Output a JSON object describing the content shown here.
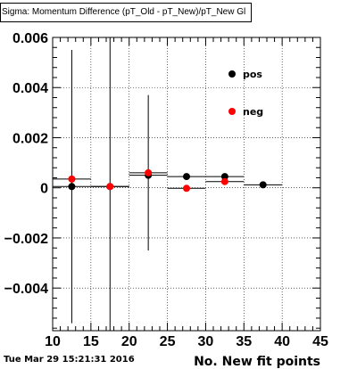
{
  "title": "Sigma: Momentum Difference (pT_Old - pT_New)/pT_New Gl",
  "footer_date": "Tue Mar 29 15:21:31 2016",
  "chart_data": {
    "type": "scatter",
    "title": "Sigma: Momentum Difference (pT_Old - pT_New)/pT_New Gl",
    "xlabel": "No. New fit points",
    "ylabel": "",
    "xlim": [
      10,
      45
    ],
    "ylim": [
      -0.0057,
      0.006
    ],
    "x_ticks": [
      10,
      15,
      20,
      25,
      30,
      35,
      40,
      45
    ],
    "x_tick_labels": [
      "10",
      "15",
      "20",
      "25",
      "30",
      "35",
      "40",
      "45"
    ],
    "y_ticks": [
      -0.004,
      -0.002,
      0,
      0.002,
      0.004,
      0.006
    ],
    "y_tick_labels": [
      "−0.004",
      "−0.002",
      "0",
      "0.002",
      "0.004",
      "0.006"
    ],
    "grid": true,
    "legend_position": "top-right",
    "series": [
      {
        "name": "pos",
        "color": "#000000",
        "points": [
          {
            "x": 12.5,
            "y": 5e-05,
            "ylow": -0.0054,
            "yhigh": 0.0055
          },
          {
            "x": 17.5,
            "y": 5e-05,
            "ylow": -0.0057,
            "yhigh": 0.006
          },
          {
            "x": 22.5,
            "y": 0.0005,
            "ylow": -0.0025,
            "yhigh": 0.0037
          },
          {
            "x": 27.5,
            "y": 0.00045,
            "ylow": 0.00045,
            "yhigh": 0.00045
          },
          {
            "x": 32.5,
            "y": 0.00045,
            "ylow": 0.00045,
            "yhigh": 0.00045
          },
          {
            "x": 37.5,
            "y": 0.00012,
            "ylow": 0.00012,
            "yhigh": 0.00012
          }
        ]
      },
      {
        "name": "neg",
        "color": "#ff0000",
        "points": [
          {
            "x": 12.5,
            "y": 0.00035,
            "ylow": 0.00035,
            "yhigh": 0.00035
          },
          {
            "x": 17.5,
            "y": 5e-05,
            "ylow": 5e-05,
            "yhigh": 5e-05
          },
          {
            "x": 22.5,
            "y": 0.0006,
            "ylow": 0.0006,
            "yhigh": 0.0006
          },
          {
            "x": 27.5,
            "y": -2e-05,
            "ylow": -2e-05,
            "yhigh": -2e-05
          },
          {
            "x": 32.5,
            "y": 0.00025,
            "ylow": 0.00025,
            "yhigh": 0.00025
          }
        ]
      }
    ]
  }
}
